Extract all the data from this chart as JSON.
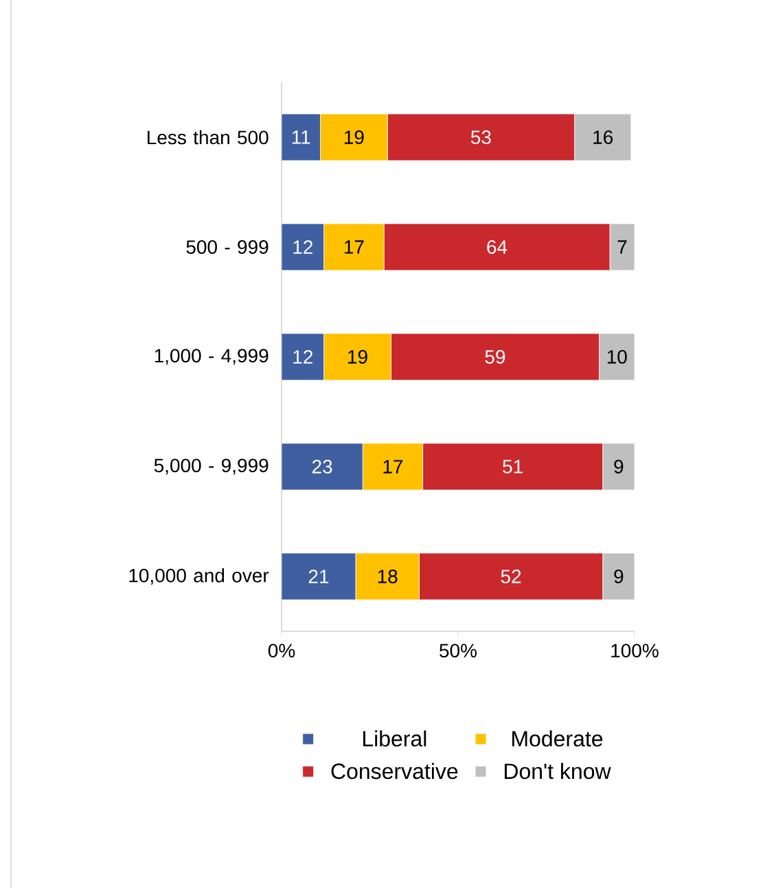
{
  "chart_data": {
    "type": "bar",
    "orientation": "horizontal",
    "stacked": true,
    "data_labels": true,
    "legend": "bottom",
    "grid": false,
    "categories": [
      "Less than 500",
      "500 - 999",
      "1,000 - 4,999",
      "5,000 - 9,999",
      "10,000 and over"
    ],
    "series": [
      {
        "name": "Liberal",
        "color": "#3f5fa0",
        "values": [
          11,
          12,
          12,
          23,
          21
        ]
      },
      {
        "name": "Moderate",
        "color": "#ffc000",
        "values": [
          19,
          17,
          19,
          17,
          18
        ]
      },
      {
        "name": "Conservative",
        "color": "#c9282d",
        "values": [
          53,
          64,
          59,
          51,
          52
        ]
      },
      {
        "name": "Don't know",
        "color": "#bfbfbf",
        "values": [
          16,
          7,
          10,
          9,
          9
        ]
      }
    ],
    "xlim": [
      0,
      100
    ],
    "xticks": [
      {
        "value": 0,
        "label": "0%"
      },
      {
        "value": 50,
        "label": "50%"
      },
      {
        "value": 100,
        "label": "100%"
      }
    ]
  }
}
